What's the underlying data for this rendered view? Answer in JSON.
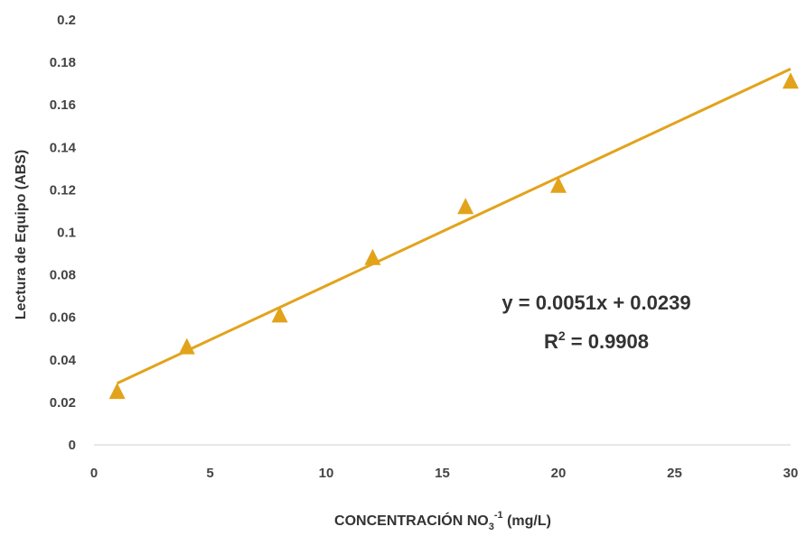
{
  "chart_data": {
    "type": "scatter",
    "xlabel": {
      "prefix": "CONCENTRACIÓN NO",
      "sub": "3",
      "sup": "-1",
      "suffix": " (mg/L)"
    },
    "ylabel": "Lectura de Equipo (ABS)",
    "xlim": [
      0,
      30
    ],
    "ylim": [
      0,
      0.2
    ],
    "xticks": [
      0,
      5,
      10,
      15,
      20,
      25,
      30
    ],
    "yticks": [
      0,
      0.02,
      0.04,
      0.06,
      0.08,
      0.1,
      0.12,
      0.14,
      0.16,
      0.18,
      0.2
    ],
    "ytick_labels": [
      "0",
      "0.02",
      "0.04",
      "0.06",
      "0.08",
      "0.1",
      "0.12",
      "0.14",
      "0.16",
      "0.18",
      "0.2"
    ],
    "grid": false,
    "marker": "triangle",
    "marker_color": "#e2a31b",
    "line_color": "#e2a31b",
    "series": [
      {
        "x": [
          1,
          4,
          8,
          12,
          16,
          20,
          30
        ],
        "y": [
          0.025,
          0.046,
          0.061,
          0.088,
          0.112,
          0.122,
          0.171
        ]
      }
    ],
    "trendline": {
      "type": "linear",
      "slope": 0.0051,
      "intercept": 0.0239,
      "x_range": [
        1,
        30
      ]
    },
    "equation": {
      "line1": "y = 0.0051x + 0.0239",
      "r2_prefix": "R",
      "r2_sup": "2",
      "r2_value": " = 0.9908"
    }
  }
}
